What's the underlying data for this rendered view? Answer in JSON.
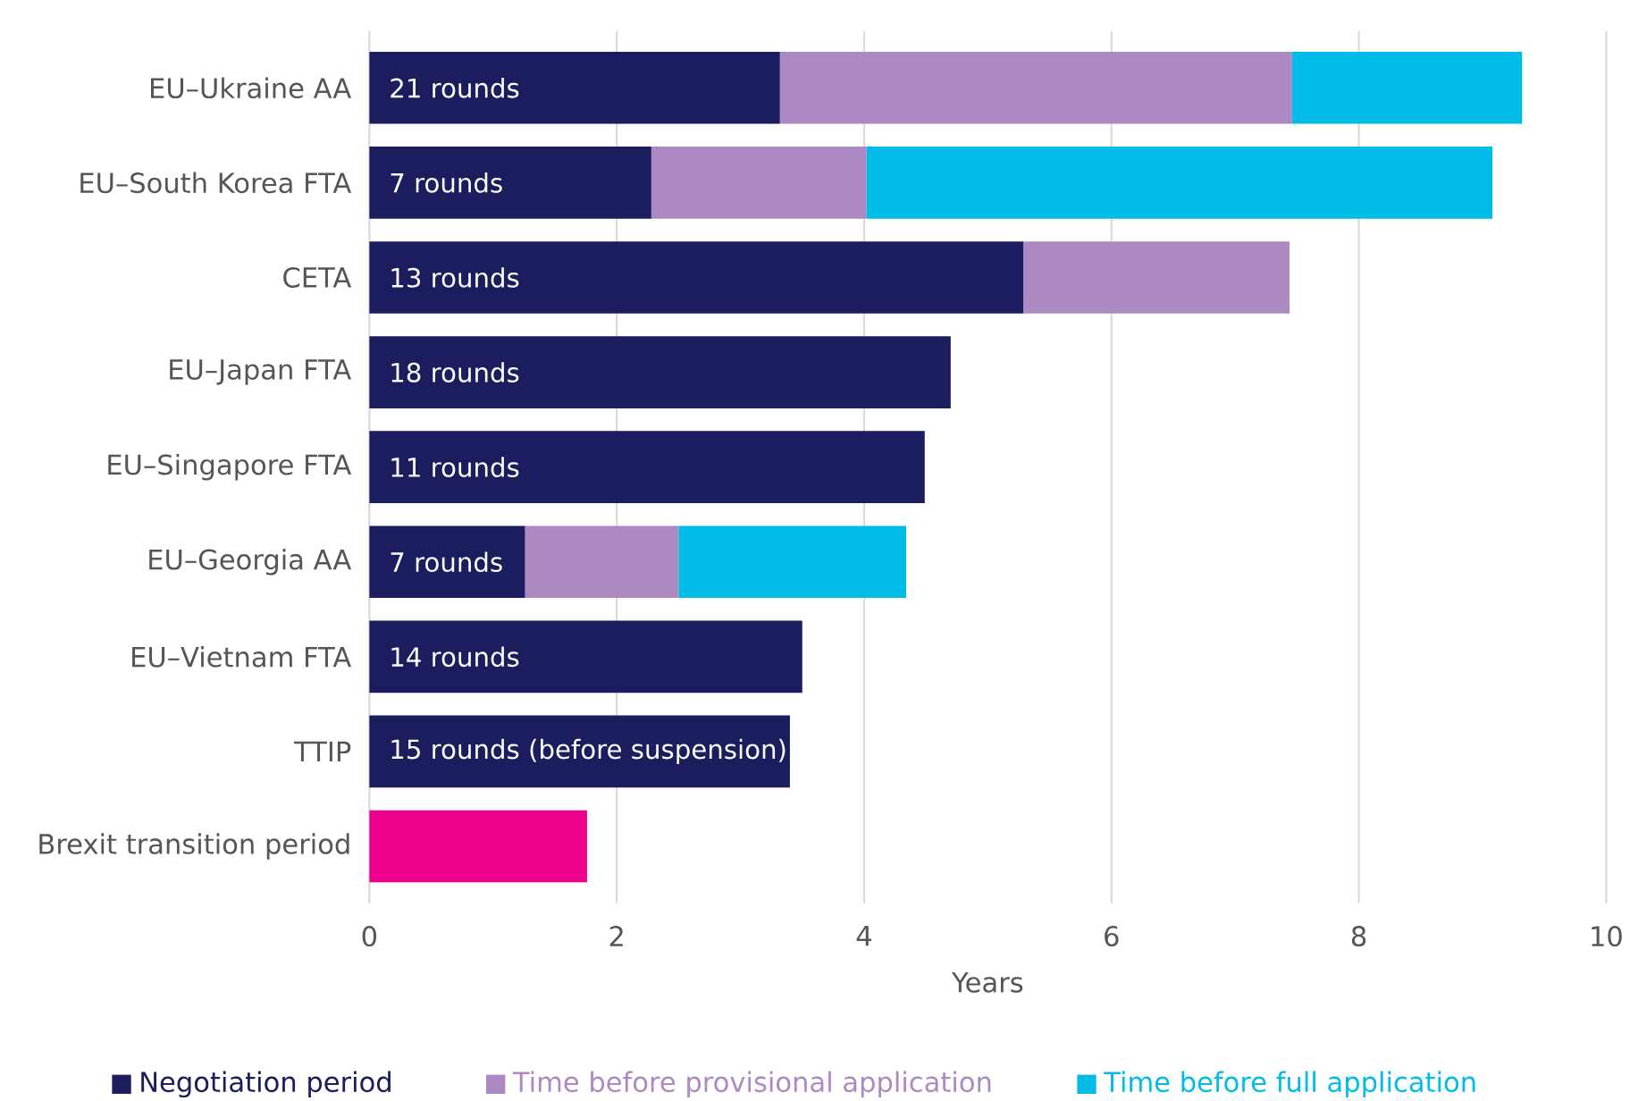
{
  "chart_data": {
    "type": "bar",
    "orientation": "horizontal",
    "stacked": true,
    "xlabel": "Years",
    "categories": [
      "EU–Ukraine AA",
      "EU–South Korea FTA",
      "CETA",
      "EU–Japan FTA",
      "EU–Singapore FTA",
      "EU–Georgia AA",
      "EU–Vietnam FTA",
      "TTIP",
      "Brexit transition period"
    ],
    "series": [
      {
        "name": "Negotiation period",
        "color": "#1b1d5e",
        "colors": [
          "#1b1d5e",
          "#1b1d5e",
          "#1b1d5e",
          "#1b1d5e",
          "#1b1d5e",
          "#1b1d5e",
          "#1b1d5e",
          "#1b1d5e",
          "#ec008c"
        ],
        "values": [
          3.32,
          2.28,
          5.29,
          4.7,
          4.49,
          1.26,
          3.5,
          3.4,
          1.76
        ]
      },
      {
        "name": "Time before provisional application",
        "color": "#ad89c3",
        "values": [
          4.14,
          1.74,
          2.15,
          null,
          null,
          1.24,
          null,
          null,
          null
        ]
      },
      {
        "name": "Time before full application",
        "color": "#00bce6",
        "values": [
          1.86,
          5.06,
          null,
          null,
          null,
          1.84,
          null,
          null,
          null
        ]
      }
    ],
    "annotations": [
      "21 rounds",
      "7 rounds",
      "13 rounds",
      "18 rounds",
      "11 rounds",
      "7 rounds",
      "14 rounds",
      "15 rounds (before suspension)"
    ],
    "xlim": [
      0,
      10
    ],
    "xticks": [
      0,
      2,
      4,
      6,
      8,
      10
    ],
    "grid": "x",
    "legend": "bottom"
  }
}
